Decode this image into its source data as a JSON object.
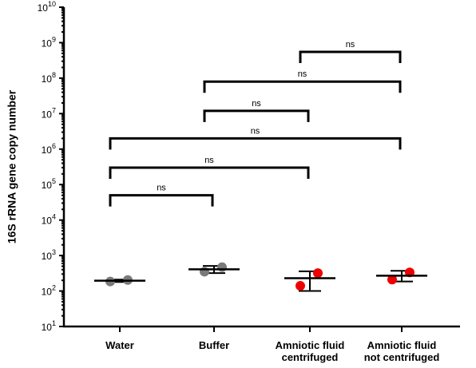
{
  "chart_data": {
    "type": "scatter",
    "ylabel": "16S rRNA gene copy number",
    "yscale": "log",
    "ylim": [
      10,
      10000000000
    ],
    "yticks": [
      {
        "base": "10",
        "exp": "1"
      },
      {
        "base": "10",
        "exp": "2"
      },
      {
        "base": "10",
        "exp": "3"
      },
      {
        "base": "10",
        "exp": "4"
      },
      {
        "base": "10",
        "exp": "5"
      },
      {
        "base": "10",
        "exp": "6"
      },
      {
        "base": "10",
        "exp": "7"
      },
      {
        "base": "10",
        "exp": "8"
      },
      {
        "base": "10",
        "exp": "9"
      },
      {
        "base": "10",
        "exp": "10"
      }
    ],
    "categories": [
      {
        "lines": [
          "Water"
        ]
      },
      {
        "lines": [
          "Buffer"
        ]
      },
      {
        "lines": [
          "Amniotic fluid",
          "centrifuged"
        ]
      },
      {
        "lines": [
          "Amniotic fluid",
          "not centrifuged"
        ]
      }
    ],
    "groups": [
      {
        "color": "#7a7a7a",
        "points": [
          185,
          205
        ],
        "mean": 195,
        "err_low": 180,
        "err_high": 210
      },
      {
        "color": "#7a7a7a",
        "points": [
          350,
          470
        ],
        "mean": 410,
        "err_low": 320,
        "err_high": 510
      },
      {
        "color": "#ee0000",
        "points": [
          140,
          320
        ],
        "mean": 230,
        "err_low": 100,
        "err_high": 360
      },
      {
        "color": "#ee0000",
        "points": [
          210,
          335
        ],
        "mean": 270,
        "err_low": 185,
        "err_high": 370
      }
    ],
    "comparisons": [
      {
        "from": 0,
        "to": 1,
        "level": 50000,
        "label": "ns"
      },
      {
        "from": 0,
        "to": 2,
        "level": 300000,
        "label": "ns"
      },
      {
        "from": 0,
        "to": 3,
        "level": 2000000,
        "label": "ns"
      },
      {
        "from": 1,
        "to": 2,
        "level": 12000000,
        "label": "ns"
      },
      {
        "from": 1,
        "to": 3,
        "level": 80000000,
        "label": "ns"
      },
      {
        "from": 2,
        "to": 3,
        "level": 550000000,
        "label": "ns"
      }
    ]
  }
}
